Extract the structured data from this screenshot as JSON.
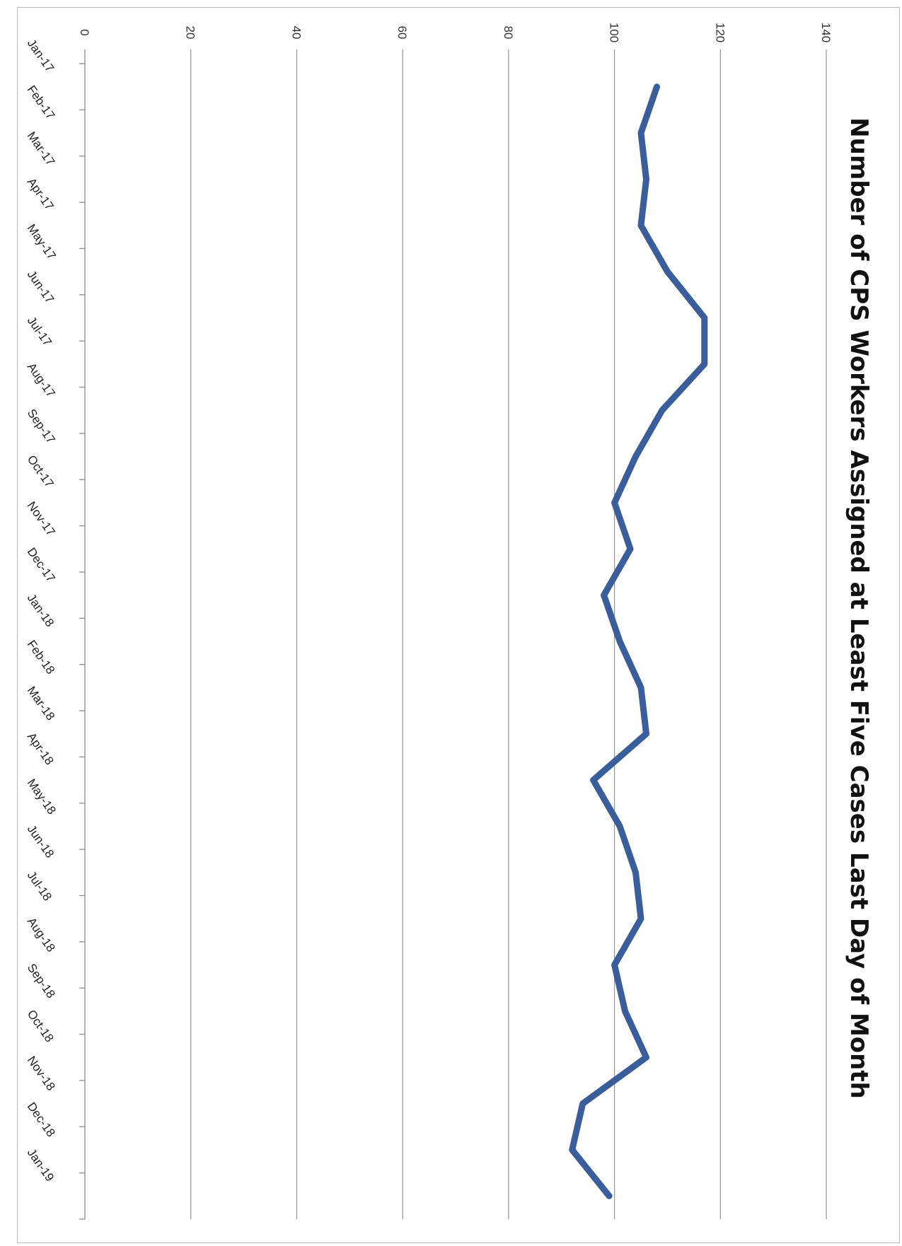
{
  "chart_data": {
    "type": "line",
    "title": "Number of CPS Workers Assigned at Least Five Cases Last Day of Month",
    "xlabel": "",
    "ylabel": "",
    "ylim": [
      0,
      140
    ],
    "yticks": [
      "0",
      "20",
      "40",
      "60",
      "80",
      "100",
      "120",
      "140"
    ],
    "grid": true,
    "legend": "none",
    "line_color": "#3a5d9c",
    "categories": [
      "Jan-17",
      "Feb-17",
      "Mar-17",
      "Apr-17",
      "May-17",
      "Jun-17",
      "Jul-17",
      "Aug-17",
      "Sep-17",
      "Oct-17",
      "Nov-17",
      "Dec-17",
      "Jan-18",
      "Feb-18",
      "Mar-18",
      "Apr-18",
      "May-18",
      "Jun-18",
      "Jul-18",
      "Aug-18",
      "Sep-18",
      "Oct-18",
      "Nov-18",
      "Dec-18",
      "Jan-19"
    ],
    "values": [
      108,
      105,
      106,
      105,
      110,
      117,
      117,
      109,
      104,
      100,
      103,
      98,
      101,
      105,
      106,
      96,
      101,
      104,
      105,
      100,
      102,
      106,
      94,
      92,
      99
    ]
  }
}
